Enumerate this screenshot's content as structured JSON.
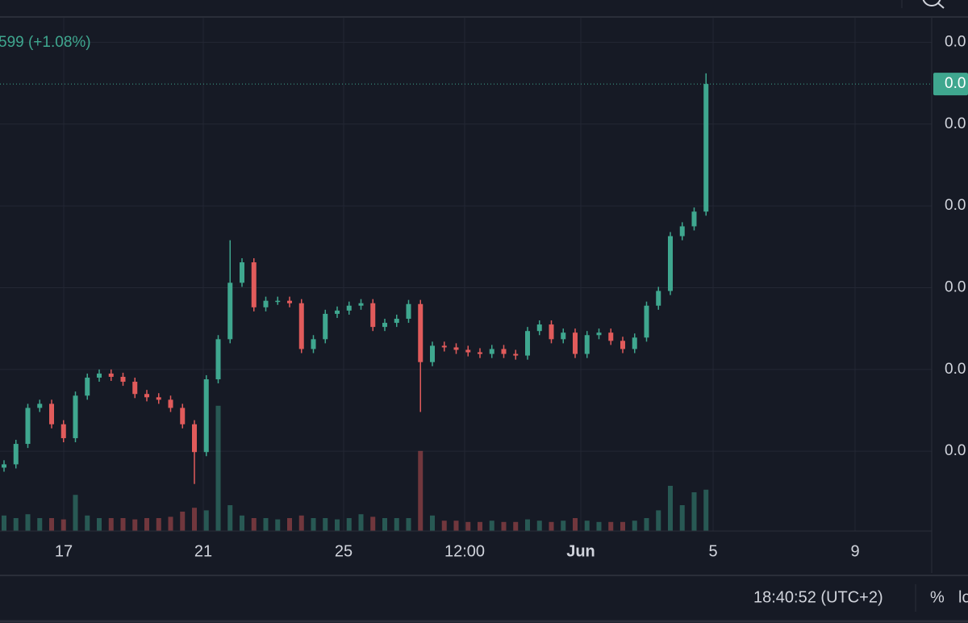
{
  "chart_data": {
    "type": "candlestick",
    "legend_text": "599 (+1.08%)",
    "up_color": "#3fa78f",
    "down_color": "#e15b5b",
    "ylim": [
      0.025,
      6.3
    ],
    "yticks": [
      {
        "value": 6,
        "label": "0.0"
      },
      {
        "value": 5,
        "label": "0.0"
      },
      {
        "value": 4,
        "label": "0.0"
      },
      {
        "value": 3,
        "label": "0.0"
      },
      {
        "value": 2,
        "label": "0.0"
      },
      {
        "value": 1,
        "label": "0.0"
      }
    ],
    "last_price": {
      "value": 5.49,
      "label": "0.0"
    },
    "grid": true,
    "time_labels": [
      "17",
      "21",
      "25",
      "12:00",
      "Jun",
      "5",
      "9"
    ],
    "open": [
      0.8,
      0.84,
      1.09,
      1.53,
      1.58,
      1.33,
      1.16,
      1.68,
      1.9,
      1.95,
      1.91,
      1.85,
      1.7,
      1.66,
      1.63,
      1.53,
      1.33,
      0.99,
      1.88,
      2.37,
      3.06,
      3.31,
      2.76,
      2.84,
      2.84,
      2.81,
      2.25,
      2.37,
      2.68,
      2.72,
      2.78,
      2.81,
      2.52,
      2.57,
      2.62,
      2.8,
      2.09,
      2.29,
      2.27,
      2.24,
      2.21,
      2.19,
      2.25,
      2.19,
      2.17,
      2.47,
      2.55,
      2.37,
      2.45,
      2.19,
      2.42,
      2.45,
      2.35,
      2.25,
      2.39,
      2.78,
      2.96,
      3.63,
      3.75,
      3.93
    ],
    "high": [
      0.89,
      1.14,
      1.58,
      1.63,
      1.63,
      1.38,
      1.73,
      1.95,
      2.0,
      2.0,
      1.96,
      1.9,
      1.75,
      1.71,
      1.68,
      1.58,
      1.38,
      1.93,
      2.42,
      3.58,
      3.36,
      3.36,
      2.89,
      2.89,
      2.89,
      2.86,
      2.42,
      2.73,
      2.77,
      2.83,
      2.86,
      2.86,
      2.62,
      2.67,
      2.85,
      2.85,
      2.34,
      2.34,
      2.32,
      2.29,
      2.26,
      2.3,
      2.3,
      2.24,
      2.52,
      2.6,
      2.6,
      2.5,
      2.5,
      2.47,
      2.5,
      2.5,
      2.4,
      2.44,
      2.83,
      3.01,
      3.68,
      3.8,
      3.98,
      5.62
    ],
    "low": [
      0.75,
      0.79,
      1.04,
      1.48,
      1.28,
      1.11,
      1.11,
      1.63,
      1.85,
      1.86,
      1.8,
      1.65,
      1.61,
      1.58,
      1.48,
      1.28,
      0.6,
      0.94,
      1.83,
      2.32,
      3.01,
      2.71,
      2.71,
      2.79,
      2.76,
      2.2,
      2.2,
      2.32,
      2.63,
      2.67,
      2.73,
      2.47,
      2.47,
      2.52,
      2.57,
      1.48,
      2.04,
      2.22,
      2.19,
      2.16,
      2.14,
      2.14,
      2.14,
      2.12,
      2.12,
      2.42,
      2.32,
      2.32,
      2.14,
      2.14,
      2.37,
      2.3,
      2.2,
      2.2,
      2.34,
      2.73,
      2.91,
      3.58,
      3.7,
      3.88
    ],
    "close": [
      0.84,
      1.09,
      1.53,
      1.58,
      1.33,
      1.16,
      1.68,
      1.9,
      1.95,
      1.91,
      1.85,
      1.7,
      1.66,
      1.63,
      1.53,
      1.33,
      0.99,
      1.88,
      2.37,
      3.06,
      3.31,
      2.76,
      2.84,
      2.84,
      2.81,
      2.25,
      2.37,
      2.68,
      2.72,
      2.78,
      2.81,
      2.52,
      2.57,
      2.62,
      2.8,
      2.09,
      2.29,
      2.27,
      2.24,
      2.21,
      2.19,
      2.25,
      2.19,
      2.17,
      2.47,
      2.55,
      2.37,
      2.45,
      2.19,
      2.42,
      2.45,
      2.35,
      2.25,
      2.39,
      2.78,
      2.96,
      3.63,
      3.75,
      3.93,
      5.49
    ],
    "volume": [
      1.2,
      1,
      1.3,
      1,
      1,
      0.9,
      2.8,
      1.2,
      1,
      1,
      1,
      0.9,
      1,
      1,
      1.1,
      1.5,
      1.8,
      1.6,
      9.7,
      2.0,
      1.2,
      1,
      1,
      0.9,
      1,
      1.2,
      1,
      1,
      0.9,
      1,
      1.3,
      1.1,
      1,
      1,
      1,
      6.2,
      1.2,
      0.8,
      0.8,
      0.7,
      0.7,
      0.8,
      0.7,
      0.7,
      0.9,
      0.8,
      0.7,
      0.8,
      1,
      0.8,
      0.7,
      0.7,
      0.7,
      0.8,
      1,
      1.6,
      3.5,
      2.0,
      3.0,
      3.2
    ],
    "vlim": [
      0,
      10
    ]
  },
  "status_bar": {
    "time": "18:40:52 (UTC+2)",
    "percent": "%",
    "log": "lo"
  }
}
